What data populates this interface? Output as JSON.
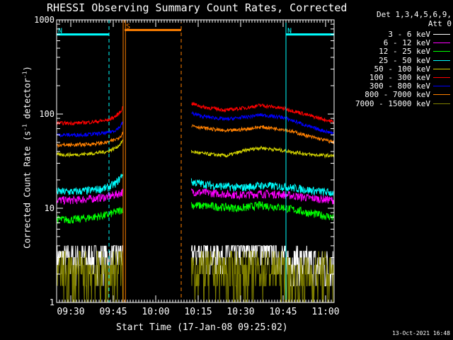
{
  "header": {
    "title": "RHESSI Observing Summary Count Rates, Corrected",
    "detectors_line1": "Det 1,3,4,5,6,9,",
    "detectors_line2": "Att 0"
  },
  "footer": {
    "timestamp": "13-Oct-2021 16:48"
  },
  "legend": [
    {
      "label": "3 - 6 keV",
      "color": "#ffffff"
    },
    {
      "label": "6 - 12 keV",
      "color": "#ff00ff"
    },
    {
      "label": "12 - 25 keV",
      "color": "#00ff00"
    },
    {
      "label": "25 - 50 keV",
      "color": "#00ffff"
    },
    {
      "label": "50 - 100 keV",
      "color": "#d4d400"
    },
    {
      "label": "100 - 300 keV",
      "color": "#ff0000"
    },
    {
      "label": "300 - 800 keV",
      "color": "#0000ff"
    },
    {
      "label": "800 - 7000 keV",
      "color": "#ff8000"
    },
    {
      "label": "7000 - 15000 keV",
      "color": "#808000"
    }
  ],
  "chart_data": {
    "type": "line",
    "title": "RHESSI Observing Summary Count Rates, Corrected",
    "xlabel": "Start Time (17-Jan-08 09:25:02)",
    "ylabel": "Corrected Count Rate (s⁻¹ detector⁻¹)",
    "ylabel_parts": {
      "a": "Corrected Count Rate (s",
      "b": "-1",
      "c": " detector",
      "d": "-1",
      "e": ")"
    },
    "yscale": "log",
    "ylim": [
      1,
      1000
    ],
    "yticks": [
      1,
      10,
      100,
      1000
    ],
    "ytick_labels": [
      "1",
      "10",
      "100",
      "1000"
    ],
    "x_unit": "minutes since 09:25:02",
    "xlim": [
      0,
      98
    ],
    "xticks": [
      5,
      20,
      35,
      50,
      65,
      80,
      95
    ],
    "xtick_labels": [
      "09:30",
      "09:45",
      "10:00",
      "10:15",
      "10:30",
      "10:45",
      "11:00"
    ],
    "x_minor_step": 1,
    "y_minor": [
      2,
      3,
      4,
      5,
      6,
      7,
      8,
      9
    ],
    "grid": false,
    "data_gaps": [
      [
        23.5,
        47.5
      ]
    ],
    "flags": [
      {
        "name": "night",
        "label": "N",
        "color": "#00ffff",
        "value": 700,
        "segments": [
          [
            0,
            18.5
          ],
          [
            81,
            98
          ]
        ]
      },
      {
        "name": "saa",
        "label": "S",
        "color": "#ff8000",
        "value": 780,
        "segments": [
          [
            24,
            44
          ]
        ]
      }
    ],
    "vlines": [
      {
        "x": 0,
        "color": "#00ffff",
        "style": "solid"
      },
      {
        "x": 18.5,
        "color": "#00ffff",
        "style": "dashed"
      },
      {
        "x": 81,
        "color": "#00ffff",
        "style": "solid"
      },
      {
        "x": 98,
        "color": "#00ffff",
        "style": "dashed"
      },
      {
        "x": 23.5,
        "color": "#ff8000",
        "style": "solid"
      },
      {
        "x": 24.3,
        "color": "#ff8000",
        "style": "solid"
      },
      {
        "x": 44,
        "color": "#ff8000",
        "style": "dashed"
      }
    ],
    "series": [
      {
        "name": "3 - 6 keV",
        "color": "#ffffff",
        "x": [
          0,
          6,
          12,
          18,
          22.5,
          23.5,
          47.5,
          52,
          60,
          70,
          80,
          85,
          90,
          98
        ],
        "y": [
          2.8,
          2.8,
          3.0,
          3.0,
          3.3,
          3.3,
          3.4,
          3.2,
          3.3,
          3.8,
          3.0,
          2.7,
          2.5,
          2.5
        ]
      },
      {
        "name": "6 - 12 keV",
        "color": "#ff00ff",
        "x": [
          0,
          6,
          12,
          18,
          22.5,
          23.5,
          47.5,
          55,
          65,
          72,
          80,
          90,
          98
        ],
        "y": [
          12.2,
          12.2,
          12.6,
          13.2,
          14.5,
          15.0,
          15.0,
          14.5,
          13.8,
          14.3,
          14.0,
          12.8,
          12.2
        ]
      },
      {
        "name": "12 - 25 keV",
        "color": "#00ff00",
        "x": [
          0,
          6,
          12,
          18,
          22.5,
          23.5,
          47.5,
          55,
          65,
          72,
          80,
          90,
          98
        ],
        "y": [
          7.6,
          7.6,
          8.0,
          8.5,
          9.5,
          10.0,
          10.8,
          10.5,
          10.0,
          10.8,
          10.2,
          8.8,
          8.0
        ]
      },
      {
        "name": "25 - 50 keV",
        "color": "#00ffff",
        "x": [
          0,
          6,
          12,
          18,
          21,
          22.5,
          23.5,
          47.5,
          55,
          65,
          72,
          80,
          90,
          98
        ],
        "y": [
          15.0,
          15.0,
          15.5,
          16.5,
          18.5,
          21.0,
          24.0,
          19.0,
          17.5,
          16.5,
          17.5,
          17.0,
          15.5,
          14.5
        ]
      },
      {
        "name": "50 - 100 keV",
        "color": "#d4d400",
        "x": [
          0,
          6,
          12,
          18,
          21,
          22.5,
          23.5,
          47.5,
          52,
          60,
          68,
          72,
          80,
          90,
          98
        ],
        "y": [
          37,
          37,
          38,
          40,
          44,
          48,
          53,
          40,
          38,
          36,
          42,
          44,
          41,
          37,
          36
        ]
      },
      {
        "name": "100 - 300 keV",
        "color": "#ff0000",
        "x": [
          0,
          6,
          12,
          18,
          21,
          22.5,
          23.5,
          47.5,
          52,
          60,
          68,
          72,
          80,
          90,
          98
        ],
        "y": [
          80,
          80,
          82,
          86,
          95,
          105,
          120,
          130,
          118,
          110,
          118,
          124,
          115,
          95,
          82
        ]
      },
      {
        "name": "300 - 800 keV",
        "color": "#0000ff",
        "x": [
          0,
          6,
          12,
          18,
          21,
          22.5,
          23.5,
          47.5,
          52,
          60,
          68,
          72,
          80,
          90,
          98
        ],
        "y": [
          60,
          60,
          61,
          63,
          68,
          74,
          82,
          102,
          94,
          88,
          94,
          98,
          92,
          72,
          62
        ]
      },
      {
        "name": "800 - 7000 keV",
        "color": "#ff8000",
        "x": [
          0,
          6,
          12,
          18,
          21,
          22.5,
          23.5,
          47.5,
          52,
          60,
          68,
          72,
          80,
          90,
          98
        ],
        "y": [
          47,
          47,
          48,
          50,
          54,
          58,
          64,
          76,
          71,
          66,
          70,
          73,
          69,
          57,
          50
        ]
      },
      {
        "name": "7000 - 15000 keV",
        "color": "#808000",
        "x": [
          0,
          6,
          12,
          18,
          22.5,
          23.5,
          47.5,
          55,
          65,
          72,
          80,
          85,
          90,
          98
        ],
        "y": [
          2.2,
          2.0,
          2.2,
          2.0,
          2.4,
          2.3,
          2.3,
          2.2,
          2.2,
          2.4,
          2.2,
          1.7,
          2.1,
          2.1
        ]
      }
    ]
  }
}
